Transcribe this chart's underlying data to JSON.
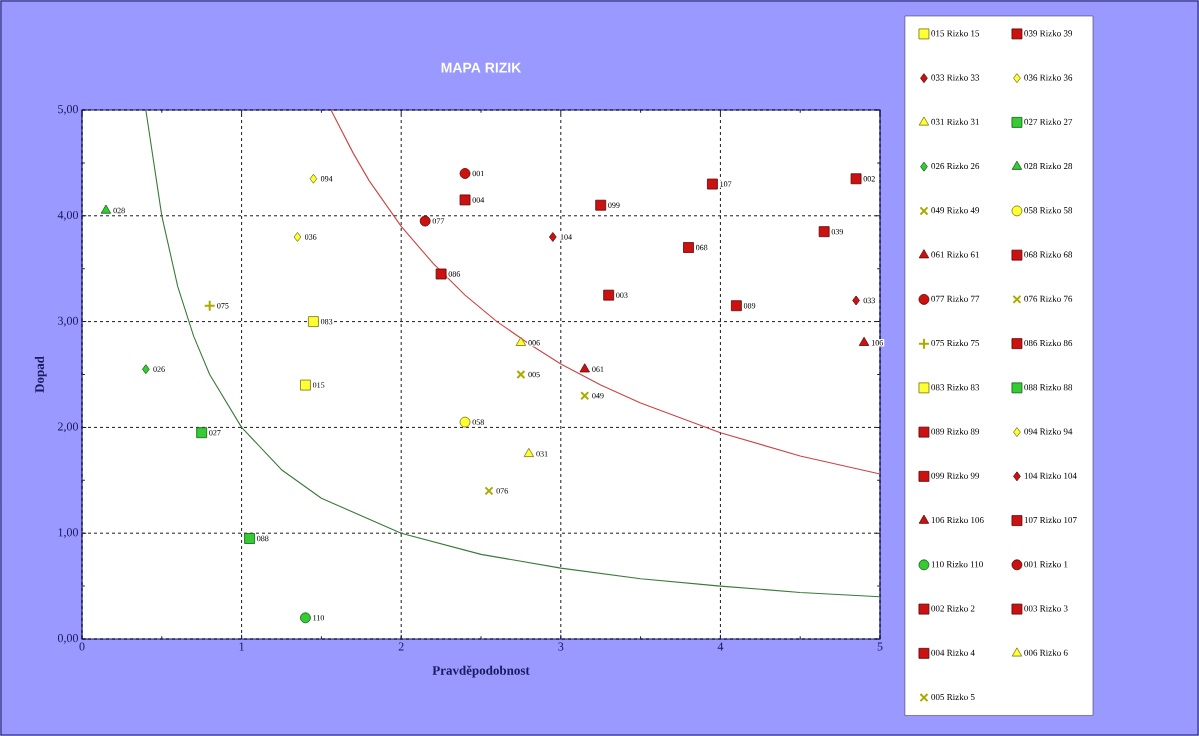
{
  "chart_data": {
    "type": "scatter",
    "title": "MAPA RIZIK",
    "xlabel": "Pravděpodobnost",
    "ylabel": "Dopad",
    "xlim": [
      0,
      5
    ],
    "ylim": [
      0,
      5
    ],
    "xticks": [
      0,
      1,
      2,
      3,
      4,
      5
    ],
    "yticks": [
      {
        "value": 0,
        "label": "0,00"
      },
      {
        "value": 1,
        "label": "1,00"
      },
      {
        "value": 2,
        "label": "2,00"
      },
      {
        "value": 3,
        "label": "3,00"
      },
      {
        "value": 4,
        "label": "4,00"
      },
      {
        "value": 5,
        "label": "5,00"
      }
    ],
    "grid": true,
    "legend": "right",
    "series": [
      {
        "type": "line",
        "color": "#3a7a3a",
        "x": [
          0.4,
          0.5,
          0.6,
          0.7,
          0.8,
          1,
          1.25,
          1.5,
          2,
          2.5,
          3,
          3.5,
          4,
          4.5,
          5
        ],
        "values": [
          5,
          4,
          3.33,
          2.86,
          2.5,
          2,
          1.6,
          1.33,
          1,
          0.8,
          0.67,
          0.57,
          0.5,
          0.44,
          0.4
        ]
      },
      {
        "type": "line",
        "color": "#cc4444",
        "x": [
          1.56,
          1.7,
          1.8,
          2,
          2.2,
          2.4,
          2.6,
          2.8,
          3,
          3.25,
          3.5,
          4,
          4.5,
          5
        ],
        "values": [
          5,
          4.59,
          4.33,
          3.9,
          3.55,
          3.25,
          3,
          2.79,
          2.6,
          2.4,
          2.23,
          1.95,
          1.73,
          1.56
        ]
      },
      {
        "name": "015 Rizko 15",
        "marker": "square",
        "color": "#ffff33",
        "x": [
          1.4
        ],
        "values": [
          2.4
        ]
      },
      {
        "name": "039 Rizko 39",
        "marker": "square",
        "color": "#cc1111",
        "x": [
          4.65
        ],
        "values": [
          3.85
        ]
      },
      {
        "name": "033 Rizko 33",
        "marker": "diamond",
        "color": "#cc1111",
        "x": [
          4.85
        ],
        "values": [
          3.2
        ]
      },
      {
        "name": "036 Rizko 36",
        "marker": "diamond",
        "color": "#ffff33",
        "x": [
          1.35
        ],
        "values": [
          3.8
        ]
      },
      {
        "name": "031 Rizko 31",
        "marker": "triangle",
        "color": "#ffff33",
        "x": [
          2.8
        ],
        "values": [
          1.75
        ]
      },
      {
        "name": "027 Rizko 27",
        "marker": "square",
        "color": "#33cc33",
        "x": [
          0.75
        ],
        "values": [
          1.95
        ]
      },
      {
        "name": "026 Rizko 26",
        "marker": "diamond",
        "color": "#33cc33",
        "x": [
          0.4
        ],
        "values": [
          2.55
        ]
      },
      {
        "name": "028 Rizko 28",
        "marker": "triangle",
        "color": "#33cc33",
        "x": [
          0.15
        ],
        "values": [
          4.05
        ]
      },
      {
        "name": "049 Rizko 49",
        "marker": "cross",
        "color": "#aaaa00",
        "x": [
          3.15
        ],
        "values": [
          2.3
        ]
      },
      {
        "name": "058 Rizko 58",
        "marker": "circle",
        "color": "#ffff33",
        "x": [
          2.4
        ],
        "values": [
          2.05
        ]
      },
      {
        "name": "061 Rizko 61",
        "marker": "triangle",
        "color": "#cc1111",
        "x": [
          3.15
        ],
        "values": [
          2.55
        ]
      },
      {
        "name": "068 Rizko 68",
        "marker": "square",
        "color": "#cc1111",
        "x": [
          3.8
        ],
        "values": [
          3.7
        ]
      },
      {
        "name": "077 Rizko 77",
        "marker": "circle",
        "color": "#cc1111",
        "x": [
          2.15
        ],
        "values": [
          3.95
        ]
      },
      {
        "name": "076 Rizko 76",
        "marker": "cross",
        "color": "#aaaa00",
        "x": [
          2.55
        ],
        "values": [
          1.4
        ]
      },
      {
        "name": "075 Rizko 75",
        "marker": "plus",
        "color": "#aaaa00",
        "x": [
          0.8
        ],
        "values": [
          3.15
        ]
      },
      {
        "name": "086 Rizko 86",
        "marker": "square",
        "color": "#cc1111",
        "x": [
          2.25
        ],
        "values": [
          3.45
        ]
      },
      {
        "name": "083 Rizko 83",
        "marker": "square",
        "color": "#ffff33",
        "x": [
          1.45
        ],
        "values": [
          3.0
        ]
      },
      {
        "name": "088 Rizko 88",
        "marker": "square",
        "color": "#33cc33",
        "x": [
          1.05
        ],
        "values": [
          0.95
        ]
      },
      {
        "name": "089 Rizko 89",
        "marker": "square",
        "color": "#cc1111",
        "x": [
          4.1
        ],
        "values": [
          3.15
        ]
      },
      {
        "name": "094 Rizko 94",
        "marker": "diamond",
        "color": "#ffff33",
        "x": [
          1.45
        ],
        "values": [
          4.35
        ]
      },
      {
        "name": "099 Rizko 99",
        "marker": "square",
        "color": "#cc1111",
        "x": [
          3.25
        ],
        "values": [
          4.1
        ]
      },
      {
        "name": "104 Rizko 104",
        "marker": "diamond",
        "color": "#cc1111",
        "x": [
          2.95
        ],
        "values": [
          3.8
        ]
      },
      {
        "name": "106 Rizko 106",
        "marker": "triangle",
        "color": "#cc1111",
        "x": [
          4.9
        ],
        "values": [
          2.8
        ]
      },
      {
        "name": "107 Rizko 107",
        "marker": "square",
        "color": "#cc1111",
        "x": [
          3.95
        ],
        "values": [
          4.3
        ]
      },
      {
        "name": "110 Rizko 110",
        "marker": "circle",
        "color": "#33cc33",
        "x": [
          1.4
        ],
        "values": [
          0.2
        ]
      },
      {
        "name": "001 Rizko 1",
        "marker": "circle",
        "color": "#cc1111",
        "x": [
          2.4
        ],
        "values": [
          4.4
        ]
      },
      {
        "name": "002 Rizko 2",
        "marker": "square",
        "color": "#cc1111",
        "x": [
          4.85
        ],
        "values": [
          4.35
        ]
      },
      {
        "name": "003 Rizko 3",
        "marker": "square",
        "color": "#cc1111",
        "x": [
          3.3
        ],
        "values": [
          3.25
        ]
      },
      {
        "name": "004 Rizko 4",
        "marker": "square",
        "color": "#cc1111",
        "x": [
          2.4
        ],
        "values": [
          4.15
        ]
      },
      {
        "name": "006 Rizko 6",
        "marker": "triangle",
        "color": "#ffff33",
        "x": [
          2.75
        ],
        "values": [
          2.8
        ]
      },
      {
        "name": "005 Rizko 5",
        "marker": "cross",
        "color": "#aaaa00",
        "x": [
          2.75
        ],
        "values": [
          2.5
        ]
      }
    ],
    "annotations": [
      {
        "text": "015",
        "x": 1.4,
        "y": 2.4
      },
      {
        "text": "039",
        "x": 4.65,
        "y": 3.85
      },
      {
        "text": "033",
        "x": 4.85,
        "y": 3.2
      },
      {
        "text": "036",
        "x": 1.35,
        "y": 3.8
      },
      {
        "text": "031",
        "x": 2.8,
        "y": 1.75
      },
      {
        "text": "027",
        "x": 0.75,
        "y": 1.95
      },
      {
        "text": "026",
        "x": 0.4,
        "y": 2.55
      },
      {
        "text": "028",
        "x": 0.15,
        "y": 4.05
      },
      {
        "text": "049",
        "x": 3.15,
        "y": 2.3
      },
      {
        "text": "058",
        "x": 2.4,
        "y": 2.05
      },
      {
        "text": "061",
        "x": 3.15,
        "y": 2.55
      },
      {
        "text": "068",
        "x": 3.8,
        "y": 3.7
      },
      {
        "text": "077",
        "x": 2.15,
        "y": 3.95
      },
      {
        "text": "076",
        "x": 2.55,
        "y": 1.4
      },
      {
        "text": "075",
        "x": 0.8,
        "y": 3.15
      },
      {
        "text": "086",
        "x": 2.25,
        "y": 3.45
      },
      {
        "text": "083",
        "x": 1.45,
        "y": 3.0
      },
      {
        "text": "088",
        "x": 1.05,
        "y": 0.95
      },
      {
        "text": "089",
        "x": 4.1,
        "y": 3.15
      },
      {
        "text": "094",
        "x": 1.45,
        "y": 4.35
      },
      {
        "text": "099",
        "x": 3.25,
        "y": 4.1
      },
      {
        "text": "104",
        "x": 2.95,
        "y": 3.8
      },
      {
        "text": "106",
        "x": 4.9,
        "y": 2.8
      },
      {
        "text": "107",
        "x": 3.95,
        "y": 4.3
      },
      {
        "text": "110",
        "x": 1.4,
        "y": 0.2
      },
      {
        "text": "001",
        "x": 2.4,
        "y": 4.4
      },
      {
        "text": "002",
        "x": 4.85,
        "y": 4.35
      },
      {
        "text": "003",
        "x": 3.3,
        "y": 3.25
      },
      {
        "text": "004",
        "x": 2.4,
        "y": 4.15
      },
      {
        "text": "006",
        "x": 2.75,
        "y": 2.8
      },
      {
        "text": "005",
        "x": 2.75,
        "y": 2.5
      }
    ]
  }
}
